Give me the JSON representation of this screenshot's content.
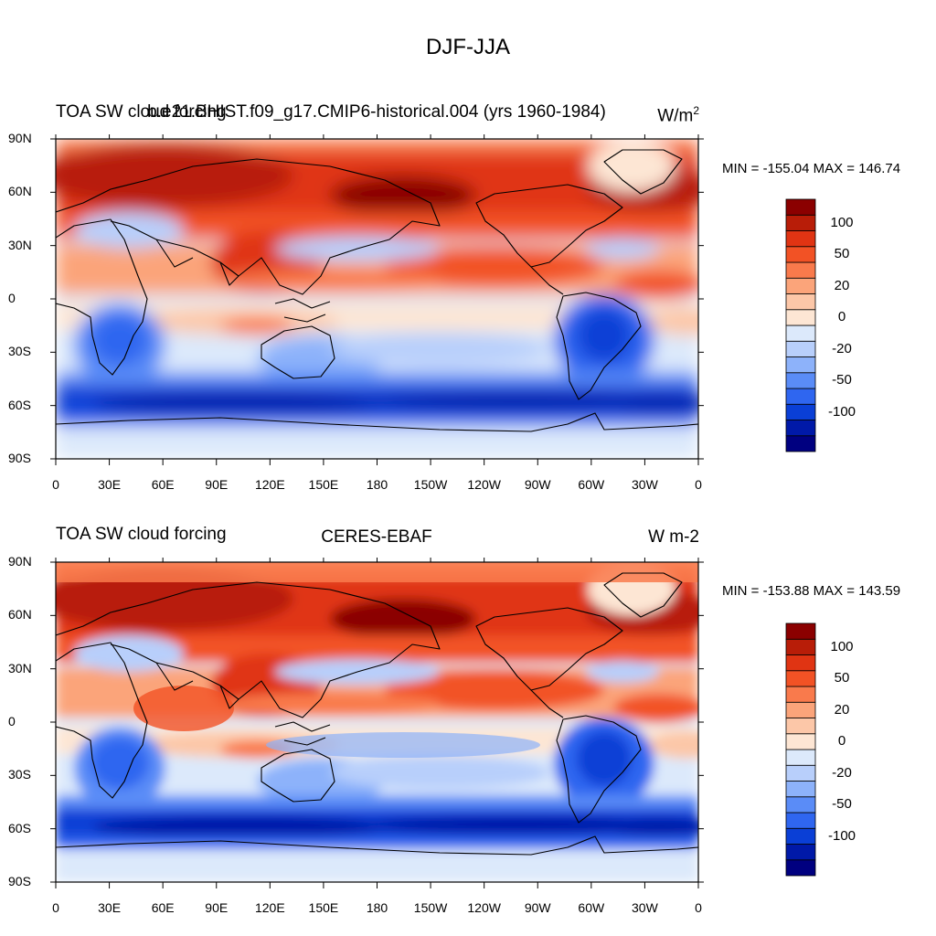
{
  "title": "DJF-JJA",
  "panels": [
    {
      "left_title": "TOA SW cloud forcing",
      "center_title": "b.e21.BHIST.f09_g17.CMIP6-historical.004 (yrs 1960-1984)",
      "units_text": "W/m",
      "units_sup": "2",
      "stats": "MIN = -155.04 MAX = 146.74"
    },
    {
      "left_title": "TOA SW cloud forcing",
      "center_title": "CERES-EBAF",
      "units_text": "W m-2",
      "units_sup": "",
      "stats": "MIN = -153.88 MAX = 143.59"
    }
  ],
  "lat_labels": [
    "90N",
    "60N",
    "30N",
    "0",
    "30S",
    "60S",
    "90S"
  ],
  "lon_labels": [
    "0",
    "30E",
    "60E",
    "90E",
    "120E",
    "150E",
    "180",
    "150W",
    "120W",
    "90W",
    "60W",
    "30W",
    "0"
  ],
  "colorbar": {
    "colors": [
      "#000080",
      "#0019a8",
      "#0a3fd6",
      "#2f66f0",
      "#5a8cf7",
      "#8db2fa",
      "#b8cffb",
      "#dce9fb",
      "#fde6d4",
      "#fcc7a8",
      "#fba47a",
      "#f97a4c",
      "#f25225",
      "#e03413",
      "#b81d08",
      "#8b0000"
    ],
    "labels": [
      "-100",
      "-50",
      "-20",
      "0",
      "20",
      "50",
      "100"
    ]
  }
}
